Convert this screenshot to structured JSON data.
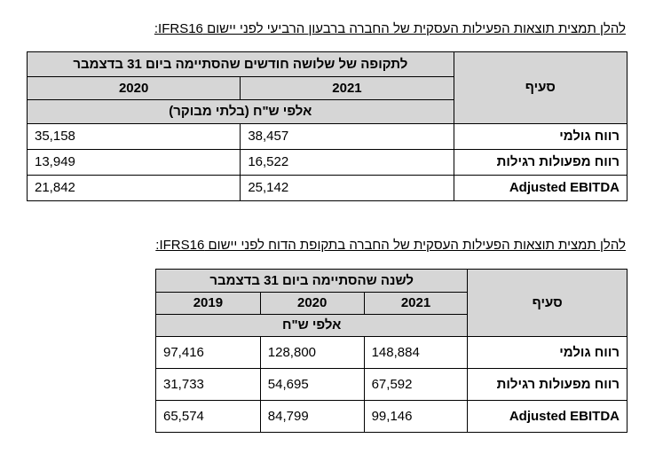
{
  "table1": {
    "caption": "להלן תמצית תוצאות הפעילות העסקית של החברה ברבעון הרביעי לפני יישום IFRS16:",
    "row_header": "סעיף",
    "period_header": "לתקופה של שלושה חודשים שהסתיימה ביום 31 בדצמבר",
    "years": [
      "2021",
      "2020"
    ],
    "unit": "אלפי ש\"ח (בלתי מבוקר)",
    "rows": [
      {
        "label": "רווח גולמי",
        "values": [
          "38,457",
          "35,158"
        ]
      },
      {
        "label": "רווח מפעולות רגילות",
        "values": [
          "16,522",
          "13,949"
        ]
      },
      {
        "label": "Adjusted EBITDA",
        "values": [
          "25,142",
          "21,842"
        ]
      }
    ]
  },
  "table2": {
    "caption": "להלן תמצית תוצאות הפעילות העסקית של החברה בתקופת הדוח לפני יישום IFRS16:",
    "row_header": "סעיף",
    "period_header": "לשנה שהסתיימה ביום 31 בדצמבר",
    "years": [
      "2021",
      "2020",
      "2019"
    ],
    "unit": "אלפי ש\"ח",
    "rows": [
      {
        "label": "רווח גולמי",
        "values": [
          "148,884",
          "128,800",
          "97,416"
        ]
      },
      {
        "label": "רווח מפעולות רגילות",
        "values": [
          "67,592",
          "54,695",
          "31,733"
        ]
      },
      {
        "label": "Adjusted EBITDA",
        "values": [
          "99,146",
          "84,799",
          "65,574"
        ]
      }
    ]
  }
}
